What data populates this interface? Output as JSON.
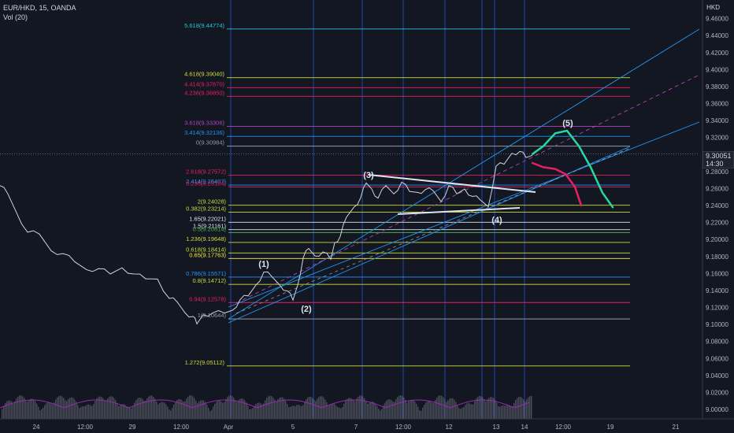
{
  "header": {
    "symbol_line": "EUR/HKD, 15, OANDA",
    "volume_line": "Vol (20)"
  },
  "price_axis": {
    "currency": "HKD",
    "last_price": "9.30051",
    "countdown": "14:30"
  },
  "colors": {
    "background": "#131722",
    "price_line": "#d1d4dc",
    "channel": "#2196f3",
    "wave_green": "#26d9a0",
    "wave_red": "#e91e63",
    "volume": "#9c27b0",
    "volume_bar": "#787b86",
    "vertical_cycle": "#2962ff"
  },
  "chart_data": {
    "type": "line",
    "title": "EUR/HKD, 15, OANDA",
    "ylim": [
      9.0,
      9.48
    ],
    "y_ticks": [
      "9.00000",
      "9.02000",
      "9.04000",
      "9.06000",
      "9.08000",
      "9.10000",
      "9.12000",
      "9.14000",
      "9.16000",
      "9.18000",
      "9.20000",
      "9.22000",
      "9.24000",
      "9.26000",
      "9.28000",
      "9.30000",
      "9.32000",
      "9.34000",
      "9.36000",
      "9.38000",
      "9.40000",
      "9.42000",
      "9.44000",
      "9.46000"
    ],
    "x_ticks": [
      "24",
      "12:00",
      "29",
      "12:00",
      "Apr",
      "5",
      "7",
      "12:00",
      "12",
      "13",
      "14",
      "12:00",
      "19",
      "21"
    ],
    "price_series": {
      "name": "EUR/HKD",
      "x": [
        0,
        10,
        20,
        35,
        50,
        65,
        80,
        95,
        110,
        125,
        140,
        155,
        170,
        185,
        200,
        215,
        225,
        235,
        245,
        250,
        258,
        270,
        285,
        295,
        305,
        315,
        325,
        335,
        345,
        355,
        365,
        372,
        378,
        385,
        392,
        400,
        410,
        420,
        425,
        432,
        440,
        450,
        458,
        465,
        472,
        480,
        490,
        500,
        510,
        520,
        530,
        540,
        550,
        560,
        570,
        580,
        590,
        600,
        610,
        620,
        630,
        640,
        650,
        660,
        668,
        676
      ],
      "y": [
        9.262,
        9.255,
        9.232,
        9.21,
        9.205,
        9.188,
        9.182,
        9.175,
        9.163,
        9.167,
        9.158,
        9.168,
        9.158,
        9.155,
        9.152,
        9.132,
        9.125,
        9.115,
        9.108,
        9.102,
        9.11,
        9.115,
        9.112,
        9.118,
        9.128,
        9.135,
        9.145,
        9.163,
        9.155,
        9.148,
        9.138,
        9.13,
        9.145,
        9.18,
        9.188,
        9.182,
        9.184,
        9.178,
        9.195,
        9.205,
        9.225,
        9.24,
        9.248,
        9.268,
        9.258,
        9.25,
        9.262,
        9.255,
        9.266,
        9.258,
        9.254,
        9.26,
        9.256,
        9.246,
        9.262,
        9.255,
        9.258,
        9.252,
        9.245,
        9.24,
        9.285,
        9.29,
        9.3,
        9.305,
        9.295,
        9.3005
      ]
    },
    "wave_projections": [
      {
        "x": [
          676,
          690,
          705,
          720,
          735,
          750,
          765,
          778
        ],
        "y": [
          9.3005,
          9.31,
          9.325,
          9.328,
          9.31,
          9.285,
          9.255,
          9.238
        ]
      },
      {
        "x": [
          676,
          690,
          705,
          718,
          730,
          738
        ],
        "y": [
          9.29,
          9.285,
          9.283,
          9.277,
          9.262,
          9.24
        ]
      }
    ],
    "fib_levels": [
      {
        "label": "5.618(9.44774)",
        "value": 9.44774,
        "color": "#26c6da"
      },
      {
        "label": "4.618(9.39040)",
        "value": 9.3904,
        "color": "#cddc39"
      },
      {
        "label": "4.414(9.37870)",
        "value": 9.3787,
        "color": "#e91e63"
      },
      {
        "label": "4.236(9.36850)",
        "value": 9.3685,
        "color": "#e91e63"
      },
      {
        "label": "3.618(9.33306)",
        "value": 9.33306,
        "color": "#ab47bc"
      },
      {
        "label": "3.414(9.32136)",
        "value": 9.32136,
        "color": "#2196f3"
      },
      {
        "label": "0(9.30984)",
        "value": 9.30984,
        "color": "#9598a1"
      },
      {
        "label": "2.618(9.27572)",
        "value": 9.27572,
        "color": "#e91e63"
      },
      {
        "label": "2.414(9.26407)",
        "value": 9.26407,
        "color": "#2196f3"
      },
      {
        "label": "0.236(9.26184)",
        "value": 9.26184,
        "color": "#e91e63"
      },
      {
        "label": "2(9.24028)",
        "value": 9.24028,
        "color": "#cddc39"
      },
      {
        "label": "0.382(9.23214)",
        "value": 9.23214,
        "color": "#cddc39"
      },
      {
        "label": "1.65(9.22021)",
        "value": 9.22021,
        "color": "#e0e3eb"
      },
      {
        "label": "1.5(9.21161)",
        "value": 9.21161,
        "color": "#e0e3eb"
      },
      {
        "label": "0.5(9.20814)",
        "value": 9.20814,
        "color": "#4caf50"
      },
      {
        "label": "1.236(9.19648)",
        "value": 9.19648,
        "color": "#cddc39"
      },
      {
        "label": "0.618(9.18414)",
        "value": 9.18414,
        "color": "#cddc39"
      },
      {
        "label": "0.65(9.17763)",
        "value": 9.17763,
        "color": "#ffeb3b"
      },
      {
        "label": "0.786(9.15571)",
        "value": 9.15571,
        "color": "#2196f3"
      },
      {
        "label": "0.8(9.14712)",
        "value": 9.14712,
        "color": "#cddc39"
      },
      {
        "label": "0.94(9.12578)",
        "value": 9.12578,
        "color": "#e91e63"
      },
      {
        "label": "1(9.10644)",
        "value": 9.10644,
        "color": "#9598a1"
      },
      {
        "label": "1.272(9.05112)",
        "value": 9.05112,
        "color": "#cddc39"
      }
    ],
    "annotations": [
      "(1)",
      "(2)",
      "(3)",
      "(4)",
      "(5)"
    ]
  }
}
